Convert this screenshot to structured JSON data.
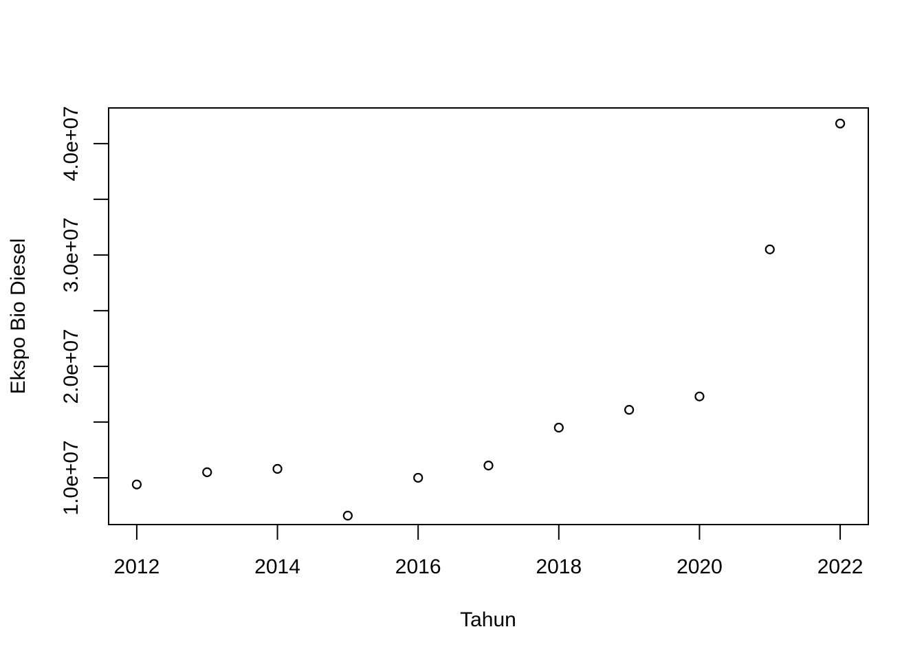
{
  "chart_data": {
    "type": "scatter",
    "title": "",
    "xlabel": "Tahun",
    "ylabel": "Ekspo Bio Diesel",
    "x": [
      2012,
      2013,
      2014,
      2015,
      2016,
      2017,
      2018,
      2019,
      2020,
      2021,
      2022
    ],
    "y": [
      9400000,
      10500000,
      10800000,
      6600000,
      10000000,
      11100000,
      14500000,
      16100000,
      17300000,
      30500000,
      41800000
    ],
    "xlim": [
      2011.6,
      2022.4
    ],
    "ylim": [
      5800000,
      43200000
    ],
    "x_ticks": [
      2012,
      2014,
      2016,
      2018,
      2020,
      2022
    ],
    "x_tick_labels": [
      "2012",
      "2014",
      "2016",
      "2018",
      "2020",
      "2022"
    ],
    "y_ticks": [
      10000000,
      15000000,
      20000000,
      25000000,
      30000000,
      35000000,
      40000000
    ],
    "y_tick_labels": [
      "1.0e+07",
      "",
      "2.0e+07",
      "",
      "3.0e+07",
      "",
      "4.0e+07"
    ],
    "grid": false,
    "legend": null,
    "colors": {
      "axis": "#000000",
      "marker": "#000000",
      "background": "#ffffff"
    },
    "marker": "open-circle"
  }
}
